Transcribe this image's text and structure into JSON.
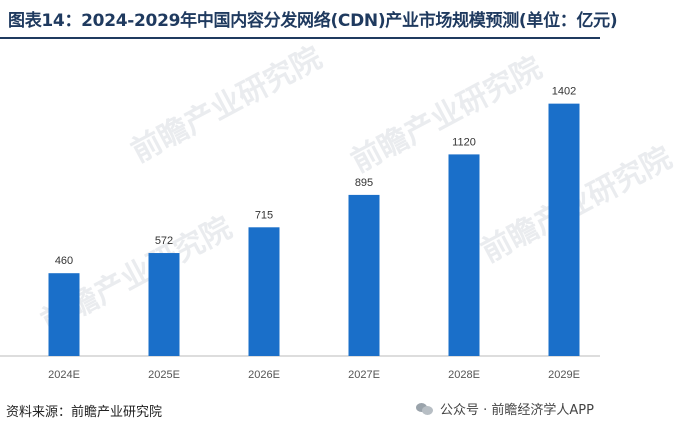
{
  "title": "图表14：2024-2029年中国内容分发网络(CDN)产业市场规模预测(单位：亿元)",
  "watermark": "前瞻产业研究院",
  "footer": {
    "source": "资料来源：前瞻产业研究院",
    "account": "公众号 · 前瞻经济学人APP"
  },
  "colors": {
    "bar": "#1a6fc9",
    "title": "#1f3a5f",
    "axis": "#bbbbbb"
  },
  "chart_data": {
    "type": "bar",
    "title": "图表14：2024-2029年中国内容分发网络(CDN)产业市场规模预测(单位：亿元)",
    "categories": [
      "2024E",
      "2025E",
      "2026E",
      "2027E",
      "2028E",
      "2029E"
    ],
    "values": [
      460,
      572,
      715,
      895,
      1120,
      1402
    ],
    "xlabel": "",
    "ylabel": "",
    "ylim": [
      0,
      1500
    ],
    "grid": false,
    "legend": "none"
  }
}
